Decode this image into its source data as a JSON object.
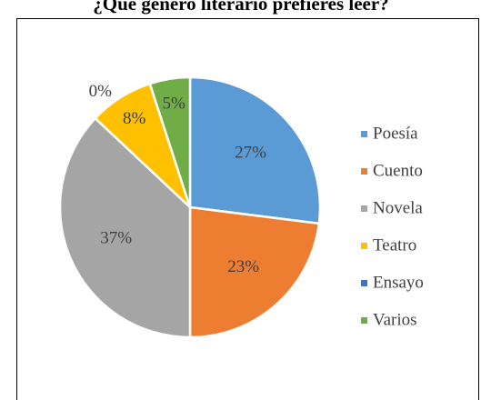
{
  "chart_data": {
    "type": "pie",
    "title": "¿Qué género literario prefieres leer?",
    "categories": [
      "Poesía",
      "Cuento",
      "Novela",
      "Teatro",
      "Ensayo",
      "Varios"
    ],
    "values": [
      27,
      23,
      37,
      8,
      0,
      5
    ],
    "value_labels": [
      "27%",
      "23%",
      "37%",
      "8%",
      "0%",
      "5%"
    ],
    "colors": [
      "#5b9bd5",
      "#ed7d31",
      "#a5a5a5",
      "#ffc000",
      "#4472c4",
      "#70ad47"
    ],
    "legend": "right"
  }
}
